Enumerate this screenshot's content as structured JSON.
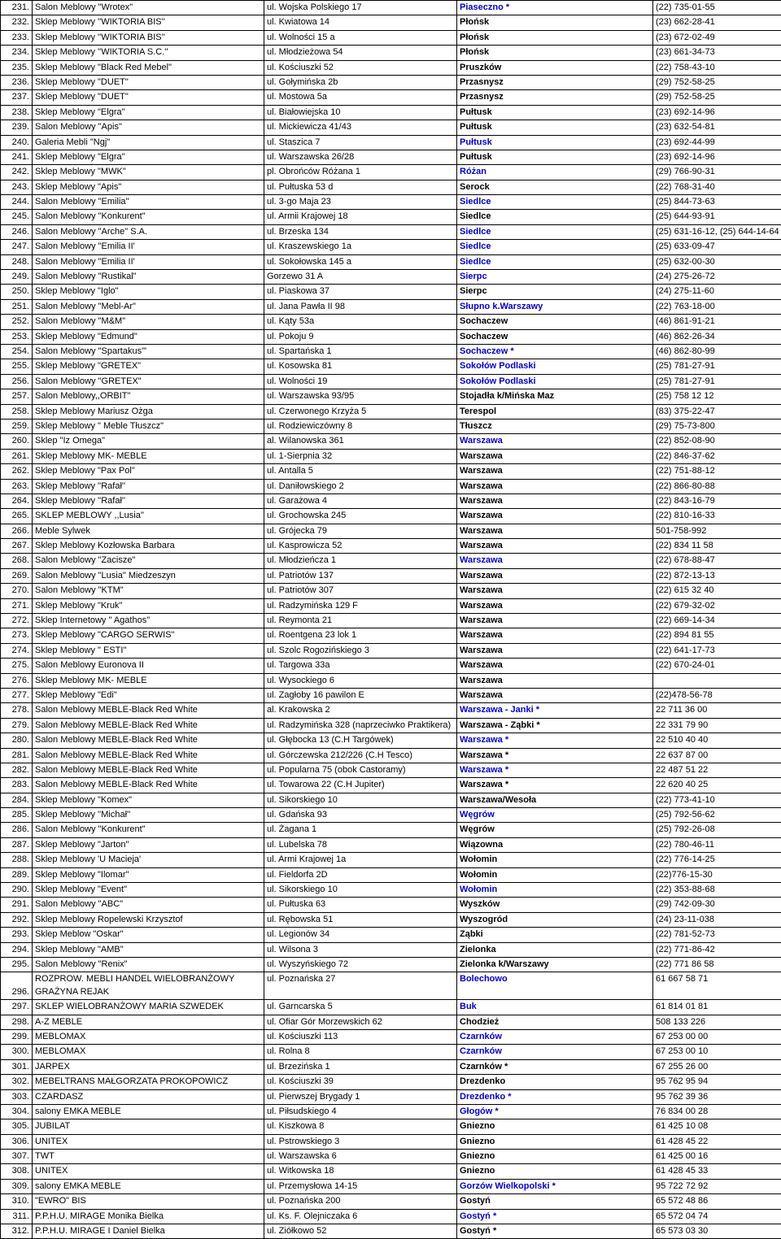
{
  "rows": [
    {
      "n": "231.",
      "name": "Salon Meblowy \"Wrotex\"",
      "addr": "ul. Wojska Polskiego 17",
      "city": "Piaseczno *",
      "blue": true,
      "phone": "(22) 735-01-55"
    },
    {
      "n": "232.",
      "name": "Sklep Meblowy ''WIKTORIA BIS''",
      "addr": "ul. Kwiatowa 14",
      "city": "Płońsk",
      "blue": false,
      "phone": "(23) 662-28-41"
    },
    {
      "n": "233.",
      "name": "Sklep Meblowy ''WIKTORIA BIS''",
      "addr": "ul. Wolności 15 a",
      "city": "Płońsk",
      "blue": false,
      "phone": "(23) 672-02-49"
    },
    {
      "n": "234.",
      "name": "Sklep Meblowy ''WIKTORIA S.C.''",
      "addr": "ul. Młodzieżowa 54",
      "city": "Płońsk",
      "blue": false,
      "phone": "(23) 661-34-73"
    },
    {
      "n": "235.",
      "name": "Sklep Meblowy \"Black Red Mebel\"",
      "addr": "ul. Kościuszki 52",
      "city": "Pruszków",
      "blue": false,
      "phone": "(22) 758-43-10"
    },
    {
      "n": "236.",
      "name": "Sklep Meblowy \"DUET\"",
      "addr": "ul. Gołymińska 2b",
      "city": "Przasnysz",
      "blue": false,
      "phone": "(29) 752-58-25"
    },
    {
      "n": "237.",
      "name": "Sklep Meblowy \"DUET\"",
      "addr": "ul. Mostowa 5a",
      "city": "Przasnysz",
      "blue": false,
      "phone": "(29) 752-58-25"
    },
    {
      "n": "238.",
      "name": "Sklep Meblowy \"Elgra\"",
      "addr": "ul. Białowiejska 10",
      "city": "Pułtusk",
      "blue": false,
      "phone": "(23) 692-14-96"
    },
    {
      "n": "239.",
      "name": "Salon Meblowy \"Apis\"",
      "addr": "ul. Mickiewicza 41/43",
      "city": "Pułtusk",
      "blue": false,
      "phone": "(23) 632-54-81"
    },
    {
      "n": "240.",
      "name": "Galeria Mebli \"Ngj\"",
      "addr": "ul. Staszica 7",
      "city": "Pułtusk",
      "blue": true,
      "phone": "(23) 692-44-99"
    },
    {
      "n": "241.",
      "name": "Sklep Meblowy \"Elgra\"",
      "addr": "ul. Warszawska 26/28",
      "city": "Pułtusk",
      "blue": false,
      "phone": "(23) 692-14-96"
    },
    {
      "n": "242.",
      "name": "Sklep Meblowy \"MWK\"",
      "addr": "pl. Obrońców Różana 1",
      "city": "Różan",
      "blue": true,
      "phone": "(29) 766-90-31"
    },
    {
      "n": "243.",
      "name": "Sklep Meblowy \"Apis\"",
      "addr": "ul. Pułtuska 53 d",
      "city": "Serock",
      "blue": false,
      "phone": "(22) 768-31-40"
    },
    {
      "n": "244.",
      "name": "Salon Meblowy \"Emilia\"",
      "addr": "ul. 3-go Maja 23",
      "city": "Siedlce",
      "blue": true,
      "phone": "(25) 844-73-63"
    },
    {
      "n": "245.",
      "name": "Salon Meblowy \"Konkurent\"",
      "addr": "ul. Armii Krajowej 18",
      "city": "Siedlce",
      "blue": false,
      "phone": "(25) 644-93-91"
    },
    {
      "n": "246.",
      "name": "Salon Meblowy \"Arche\" S.A.",
      "addr": "ul. Brzeska 134",
      "city": "Siedlce",
      "blue": true,
      "phone": "(25) 631-16-12, (25) 644-14-64"
    },
    {
      "n": "247.",
      "name": "Salon Meblowy \"Emilia II'",
      "addr": "ul. Kraszewskiego 1a",
      "city": "Siedlce",
      "blue": true,
      "phone": "(25) 633-09-47"
    },
    {
      "n": "248.",
      "name": "Salon Meblowy \"Emilia II'",
      "addr": "ul. Sokołowska 145 a",
      "city": "Siedlce",
      "blue": true,
      "phone": "(25) 632-00-30"
    },
    {
      "n": "249.",
      "name": "Salon Meblowy \"Rustikal\"",
      "addr": "Gorzewo 31 A",
      "city": "Sierpc",
      "blue": true,
      "phone": "(24) 275-26-72"
    },
    {
      "n": "250.",
      "name": "Sklep Meblowy \"Iglo\"",
      "addr": "ul. Piaskowa 37",
      "city": "Sierpc",
      "blue": false,
      "phone": "(24) 275-11-60"
    },
    {
      "n": "251.",
      "name": "Salon Meblowy \"Mebl-Ar\"",
      "addr": "ul. Jana Pawła II 98",
      "city": "Słupno k.Warszawy",
      "blue": true,
      "phone": "(22) 763-18-00"
    },
    {
      "n": "252.",
      "name": "Salon Meblowy \"M&M\"",
      "addr": "ul. Kąty 53a",
      "city": "Sochaczew",
      "blue": false,
      "phone": "(46) 861-91-21"
    },
    {
      "n": "253.",
      "name": "Sklep Meblowy \"Edmund\"",
      "addr": "ul. Pokoju 9",
      "city": "Sochaczew",
      "blue": false,
      "phone": "(46) 862-26-34"
    },
    {
      "n": "254.",
      "name": "Salon Meblowy \"Spartakus\"'",
      "addr": "ul. Spartańska 1",
      "city": "Sochaczew *",
      "blue": true,
      "phone": "(46) 862-80-99"
    },
    {
      "n": "255.",
      "name": "Sklep Meblowy \"GRETEX\"",
      "addr": "ul. Kosowska 81",
      "city": "Sokołów Podlaski",
      "blue": true,
      "phone": "(25) 781-27-91"
    },
    {
      "n": "256.",
      "name": "Salon Meblowy \"GRETEX\"",
      "addr": "ul. Wolności 19",
      "city": "Sokołów Podlaski",
      "blue": true,
      "phone": "(25) 781-27-91"
    },
    {
      "n": "257.",
      "name": "Salon Meblowy,,ORBIT\"",
      "addr": "ul. Warszawska 93/95",
      "city": "Stojadła k/Mińska Maz",
      "blue": false,
      "phone": "(25) 758 12 12"
    },
    {
      "n": "258.",
      "name": "Sklep Meblowy Mariusz Ożga",
      "addr": "ul. Czerwonego Krzyża 5",
      "city": "Terespol",
      "blue": false,
      "phone": "(83) 375-22-47"
    },
    {
      "n": "259.",
      "name": "Sklep Meblowy \" Meble Tłuszcz\"",
      "addr": "ul. Rodziewiczówny 8",
      "city": "Tłuszcz",
      "blue": false,
      "phone": "(29) 75-73-800"
    },
    {
      "n": "260.",
      "name": "Sklep  \"Iz Omega\"",
      "addr": "al. Wilanowska 361",
      "city": "Warszawa",
      "blue": true,
      "phone": "(22) 852-08-90"
    },
    {
      "n": "261.",
      "name": "Sklep Meblowy MK- MEBLE",
      "addr": "ul. 1-Sierpnia 32",
      "city": "Warszawa",
      "blue": false,
      "phone": "(22) 846-37-62"
    },
    {
      "n": "262.",
      "name": "Sklep Meblowy \"Pax Pol\"",
      "addr": "ul. Antalla 5",
      "city": "Warszawa",
      "blue": false,
      "phone": "(22) 751-88-12"
    },
    {
      "n": "263.",
      "name": "Sklep Meblowy ''Rafał''",
      "addr": "ul. Daniłowskiego 2",
      "city": "Warszawa",
      "blue": false,
      "phone": "(22) 866-80-88"
    },
    {
      "n": "264.",
      "name": "Sklep Meblowy ''Rafał''",
      "addr": "ul. Garażowa 4",
      "city": "Warszawa",
      "blue": false,
      "phone": "(22) 843-16-79"
    },
    {
      "n": "265.",
      "name": "SKLEP MEBLOWY ,,Lusia''",
      "addr": "ul. Grochowska 245",
      "city": "Warszawa",
      "blue": false,
      "phone": "(22) 810-16-33"
    },
    {
      "n": "266.",
      "name": "Meble Sylwek",
      "addr": "ul. Grójecka 79",
      "city": "Warszawa",
      "blue": false,
      "phone": "501-758-992"
    },
    {
      "n": "267.",
      "name": "Sklep Meblowy Kozłowska Barbara",
      "addr": "ul. Kasprowicza 52",
      "city": "Warszawa",
      "blue": false,
      "phone": "(22) 834 11 58"
    },
    {
      "n": "268.",
      "name": "Salon Meblowy \"Zacisze\"",
      "addr": "ul. Młodzieńcza 1",
      "city": "Warszawa",
      "blue": true,
      "phone": "(22) 678-88-47"
    },
    {
      "n": "269.",
      "name": "Salon Meblowy \"Lusia\" Miedzeszyn",
      "addr": "ul. Patriotów 137",
      "city": "Warszawa",
      "blue": false,
      "phone": "(22) 872-13-13"
    },
    {
      "n": "270.",
      "name": "Salon Meblowy \"KTM\"",
      "addr": "ul. Patriotów 307",
      "city": "Warszawa",
      "blue": false,
      "phone": "(22) 615 32 40"
    },
    {
      "n": "271.",
      "name": "Sklep Meblowy \"Kruk\"",
      "addr": "ul. Radzymińska 129 F",
      "city": "Warszawa",
      "blue": false,
      "phone": "(22) 679-32-02"
    },
    {
      "n": "272.",
      "name": "Sklep Internetowy \" Agathos\"",
      "addr": "ul. Reymonta 21",
      "city": "Warszawa",
      "blue": false,
      "phone": "(22) 669-14-34"
    },
    {
      "n": "273.",
      "name": "Sklep Meblowy \"CARGO SERWIS\"",
      "addr": "ul. Roentgena 23 lok 1",
      "city": "Warszawa",
      "blue": false,
      "phone": "(22) 894 81 55"
    },
    {
      "n": "274.",
      "name": "Sklep Meblowy \" ESTI\"",
      "addr": "ul. Szolc Rogozińskiego 3",
      "city": "Warszawa",
      "blue": false,
      "phone": "(22) 641-17-73"
    },
    {
      "n": "275.",
      "name": "Salon Meblowy Euronova II",
      "addr": "ul. Targowa 33a",
      "city": "Warszawa",
      "blue": false,
      "phone": "(22) 670-24-01"
    },
    {
      "n": "276.",
      "name": "Sklep Meblowy MK- MEBLE",
      "addr": "ul. Wysockiego 6",
      "city": "Warszawa",
      "blue": false,
      "phone": ""
    },
    {
      "n": "277.",
      "name": "Sklep Meblowy \"Edi\"",
      "addr": "ul. Zagłoby 16 pawilon E",
      "city": "Warszawa",
      "blue": false,
      "phone": "(22)478-56-78"
    },
    {
      "n": "278.",
      "name": "Salon Meblowy MEBLE-Black Red White",
      "addr": "al. Krakowska 2",
      "city": "Warszawa - Janki *",
      "blue": true,
      "phone": "22 711 36 00"
    },
    {
      "n": "279.",
      "name": "Salon Meblowy MEBLE-Black Red White",
      "addr": "ul. Radzymińska 328 (naprzeciwko Praktikera)",
      "city": "Warszawa - Ząbki *",
      "blue": false,
      "phone": "22 331 79 90"
    },
    {
      "n": "280.",
      "name": "Salon Meblowy MEBLE-Black Red White",
      "addr": "ul. Głębocka 13 (C.H Targówek)",
      "city": "Warszawa *",
      "blue": true,
      "phone": "22 510 40 40"
    },
    {
      "n": "281.",
      "name": "Salon Meblowy MEBLE-Black Red White",
      "addr": "ul. Górczewska 212/226 (C.H Tesco)",
      "city": "Warszawa *",
      "blue": false,
      "phone": "22 637 87 00"
    },
    {
      "n": "282.",
      "name": "Salon Meblowy MEBLE-Black Red White",
      "addr": "ul. Popularna 75 (obok Castoramy)",
      "city": "Warszawa *",
      "blue": true,
      "phone": "22 487 51 22"
    },
    {
      "n": "283.",
      "name": "Salon Meblowy MEBLE-Black Red White",
      "addr": "ul. Towarowa 22 (C.H Jupiter)",
      "city": "Warszawa *",
      "blue": false,
      "phone": "22 620 40 25"
    },
    {
      "n": "284.",
      "name": "Sklep Meblowy \"Komex\"",
      "addr": "ul. Sikorskiego 10",
      "city": "Warszawa/Wesoła",
      "blue": false,
      "phone": "(22) 773-41-10"
    },
    {
      "n": "285.",
      "name": "Sklep Meblowy ''Michał''",
      "addr": "ul. Gdańska 93",
      "city": "Węgrów",
      "blue": true,
      "phone": "(25) 792-56-62"
    },
    {
      "n": "286.",
      "name": "Salon Meblowy \"Konkurent\"",
      "addr": "ul. Żagana 1",
      "city": "Węgrów",
      "blue": false,
      "phone": "(25) 792-26-08"
    },
    {
      "n": "287.",
      "name": "Sklep Meblowy \"Jarton\"",
      "addr": "ul. Lubelska 78",
      "city": "Wiązowna",
      "blue": false,
      "phone": "(22) 780-46-11"
    },
    {
      "n": "288.",
      "name": "Sklep Meblowy 'U Macieja'",
      "addr": "ul. Armi Krajowej 1a",
      "city": "Wołomin",
      "blue": false,
      "phone": "(22) 776-14-25"
    },
    {
      "n": "289.",
      "name": "Sklep Meblowy \"Ilomar\"",
      "addr": "ul. Fieldorfa 2D",
      "city": "Wołomin",
      "blue": false,
      "phone": "(22)776-15-30"
    },
    {
      "n": "290.",
      "name": "Sklep Meblowy \"Event\"",
      "addr": "ul. Sikorskiego 10",
      "city": "Wołomin",
      "blue": true,
      "phone": "(22) 353-88-68"
    },
    {
      "n": "291.",
      "name": "Salon Meblowy \"ABC\"",
      "addr": "ul. Pułtuska 63",
      "city": "Wyszków",
      "blue": false,
      "phone": "(29) 742-09-30"
    },
    {
      "n": "292.",
      "name": "Sklep Meblowy Ropelewski Krzysztof",
      "addr": "ul. Rębowska 51",
      "city": "Wyszogród",
      "blue": false,
      "phone": "(24) 23-11-038"
    },
    {
      "n": "293.",
      "name": "Sklep Meblow \"Oskar\"",
      "addr": "ul. Legionów 34",
      "city": "Ząbki",
      "blue": false,
      "phone": "(22) 781-52-73"
    },
    {
      "n": "294.",
      "name": "Sklep Meblowy \"AMB\"",
      "addr": "ul. Wilsona 3",
      "city": "Zielonka",
      "blue": false,
      "phone": "(22) 771-86-42"
    },
    {
      "n": "295.",
      "name": "Salon Meblowy   \"Renix\"",
      "addr": "ul. Wyszyńskiego 72",
      "city": "Zielonka k/Warszawy",
      "blue": false,
      "phone": "(22) 771 86 58"
    },
    {
      "n": "296.",
      "name": "ROZPROW. MEBLI HANDEL WIELOBRANŻOWY GRAŻYNA REJAK",
      "addr": "ul. Poznańska 27",
      "city": "Bolechowo",
      "blue": true,
      "phone": "61 667 58 71"
    },
    {
      "n": "297.",
      "name": "SKLEP WIELOBRANŻOWY MARIA SZWEDEK",
      "addr": "ul. Garncarska 5",
      "city": "Buk",
      "blue": true,
      "phone": "61 814 01 81"
    },
    {
      "n": "298.",
      "name": "A-Z MEBLE",
      "addr": "ul. Ofiar Gór Morzewskich 62",
      "city": "Chodzież",
      "blue": false,
      "phone": "508 133 226"
    },
    {
      "n": "299.",
      "name": "MEBLOMAX",
      "addr": "ul. Kościuszki 113",
      "city": "Czarnków",
      "blue": true,
      "phone": "67 253 00 00"
    },
    {
      "n": "300.",
      "name": "MEBLOMAX",
      "addr": "ul. Rolna 8",
      "city": "Czarnków",
      "blue": true,
      "phone": "67 253 00 10"
    },
    {
      "n": "301.",
      "name": "JARPEX",
      "addr": "ul. Brzezińska 1",
      "city": "Czarnków *",
      "blue": false,
      "phone": "67 255 26 00"
    },
    {
      "n": "302.",
      "name": "MEBELTRANS MAŁGORZATA PROKOPOWICZ",
      "addr": "ul. Kościuszki 39",
      "city": "Drezdenko",
      "blue": false,
      "phone": "95 762 95 94"
    },
    {
      "n": "303.",
      "name": "CZARDASZ",
      "addr": "ul. Pierwszej Brygady 1",
      "city": "Drezdenko *",
      "blue": true,
      "phone": "95 762 39 36"
    },
    {
      "n": "304.",
      "name": "salony EMKA MEBLE",
      "addr": "ul. Piłsudskiego 4",
      "city": "Głogów *",
      "blue": true,
      "phone": "76 834 00 28"
    },
    {
      "n": "305.",
      "name": "JUBILAT",
      "addr": "ul. Kiszkowa 8",
      "city": "Gniezno",
      "blue": false,
      "phone": "61 425 10 08"
    },
    {
      "n": "306.",
      "name": "UNITEX",
      "addr": "ul. Pstrowskiego 3",
      "city": "Gniezno",
      "blue": false,
      "phone": "61 428 45 22"
    },
    {
      "n": "307.",
      "name": "TWT",
      "addr": "ul. Warszawska 6",
      "city": "Gniezno",
      "blue": false,
      "phone": "61 425 00 16"
    },
    {
      "n": "308.",
      "name": "UNITEX",
      "addr": "ul. Witkowska 18",
      "city": "Gniezno",
      "blue": false,
      "phone": "61 428 45 33"
    },
    {
      "n": "309.",
      "name": "salony EMKA MEBLE",
      "addr": "ul. Przemysłowa 14-15",
      "city": "Gorzów Wielkopolski *",
      "blue": true,
      "phone": "95 722 72 92"
    },
    {
      "n": "310.",
      "name": "\"EWRO\" BIS",
      "addr": "ul. Poznańska 200",
      "city": "Gostyń",
      "blue": false,
      "phone": "65 572 48 86"
    },
    {
      "n": "311.",
      "name": "P.P.H.U. MIRAGE Monika Bielka",
      "addr": "ul. Ks. F. Olejniczaka 6",
      "city": "Gostyń *",
      "blue": true,
      "phone": "65 572 04 74"
    },
    {
      "n": "312.",
      "name": "P.P.H.U. MIRAGE I Daniel Bielka",
      "addr": "ul. Ziółkowo 52",
      "city": "Gostyń *",
      "blue": false,
      "phone": "65 573 03 30"
    }
  ]
}
